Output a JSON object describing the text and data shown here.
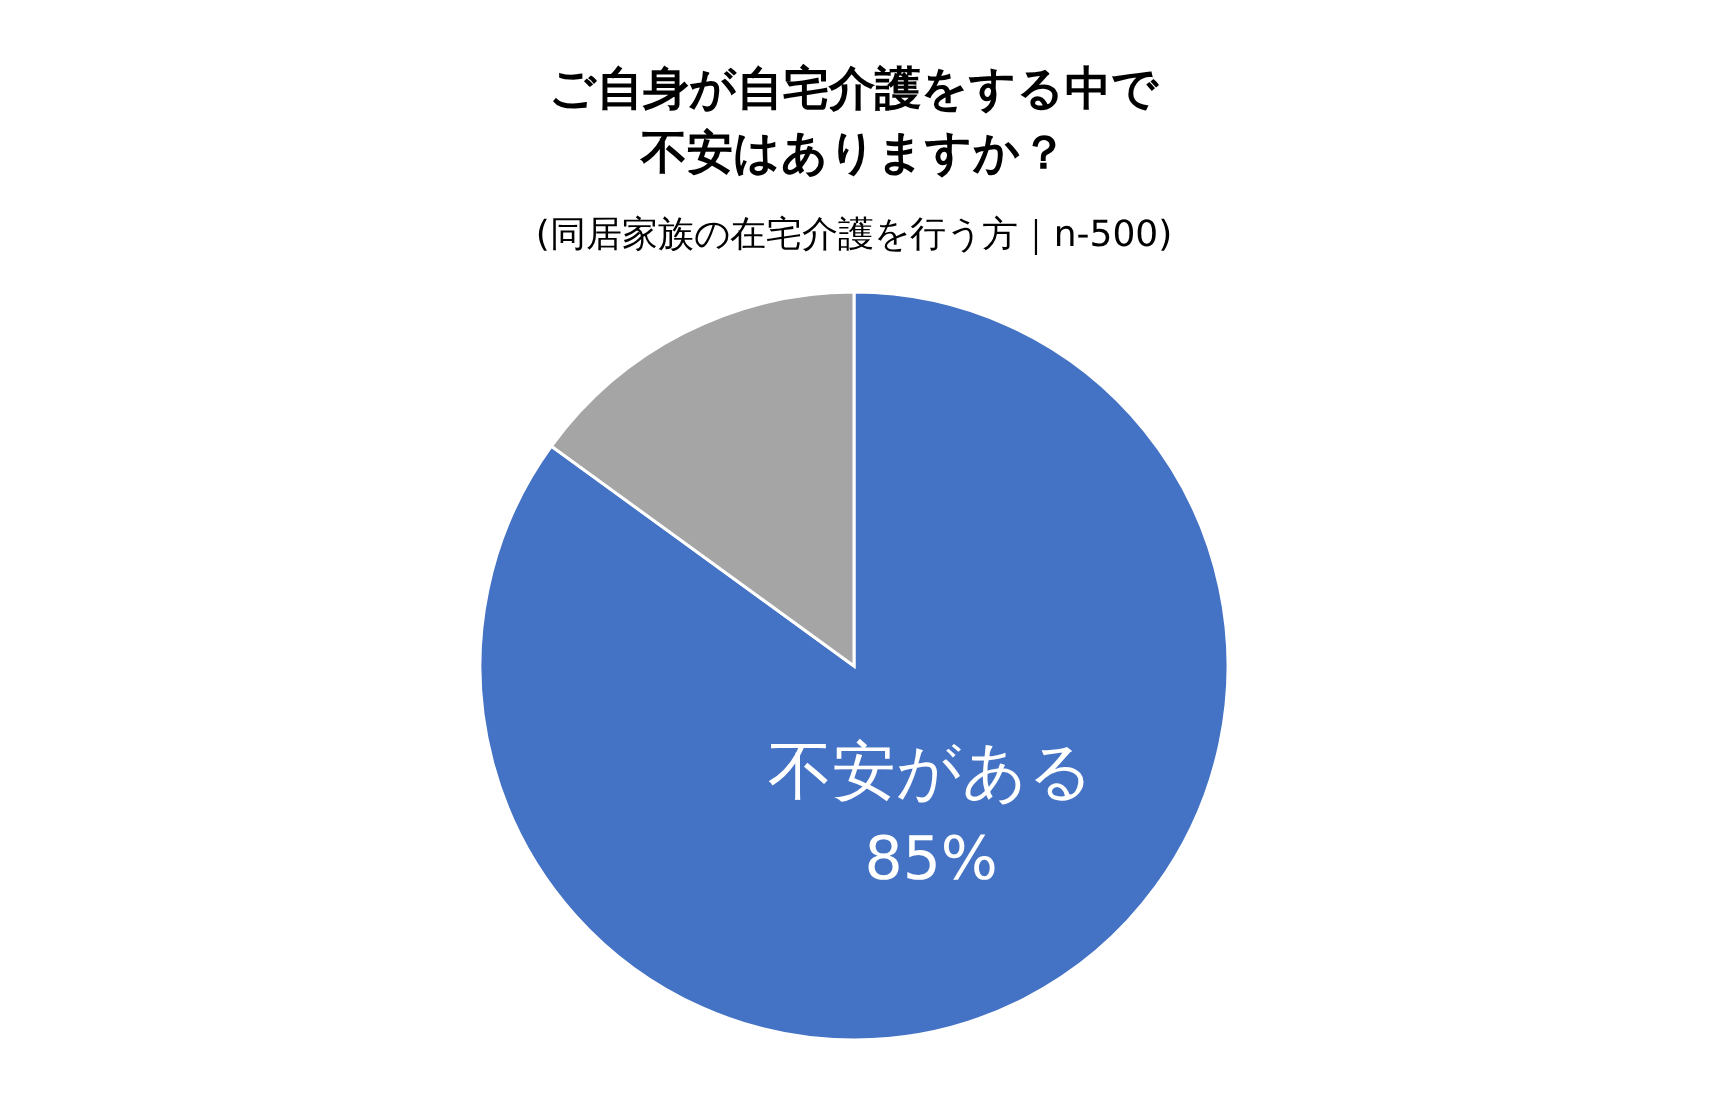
{
  "chart_data": {
    "type": "pie",
    "title": "ご自身が自宅介護をする中で不安はありますか？",
    "subtitle": "(同居家族の在宅介護を行う方｜n-500)",
    "categories": [
      "不安がある",
      null
    ],
    "values": [
      85,
      15
    ],
    "colors": [
      "#4472c4",
      "#a5a5a5"
    ],
    "value_labels": [
      "85%",
      null
    ]
  }
}
